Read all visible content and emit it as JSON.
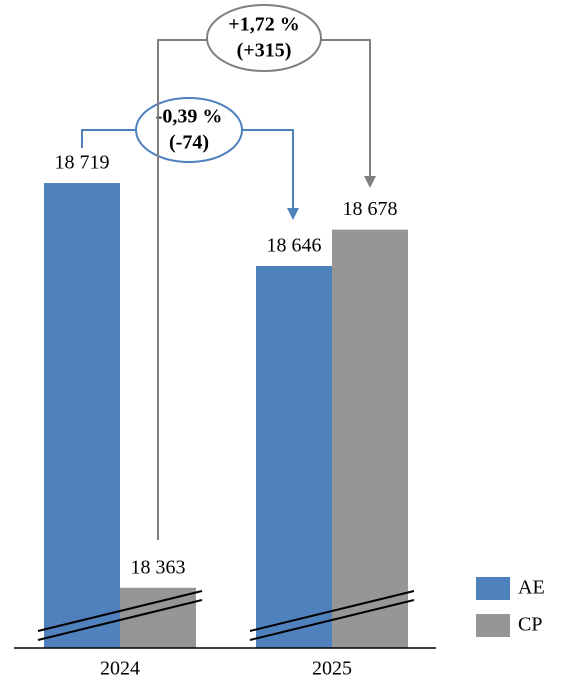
{
  "chart_data": {
    "type": "bar",
    "categories": [
      "2024",
      "2025"
    ],
    "series": [
      {
        "name": "AE",
        "color": "#4f81bd",
        "values": [
          18719,
          18646
        ],
        "value_labels": [
          "18 719",
          "18 646"
        ]
      },
      {
        "name": "CP",
        "color": "#969696",
        "values": [
          18363,
          18678
        ],
        "value_labels": [
          "18 363",
          "18 678"
        ]
      }
    ],
    "ylim": [
      18310,
      18880
    ],
    "annotations": [
      {
        "lines": [
          "-0,39 %",
          "(-74)"
        ],
        "color": "#4f81bd"
      },
      {
        "lines": [
          "+1,72 %",
          "(+315)"
        ],
        "color": "#808080"
      }
    ],
    "legend": "right"
  }
}
